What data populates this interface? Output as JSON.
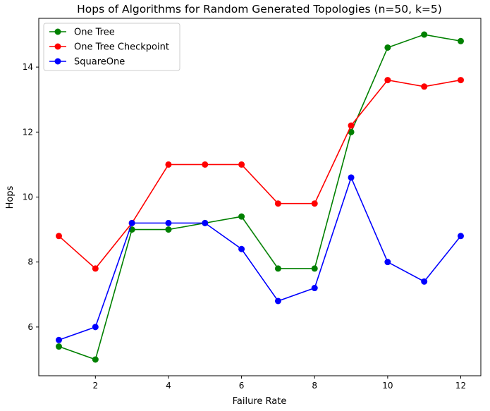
{
  "chart_data": {
    "type": "line",
    "title": "Hops of Algorithms for Random Generated Topologies (n=50, k=5)",
    "xlabel": "Failure Rate",
    "ylabel": "Hops",
    "x": [
      1,
      2,
      3,
      4,
      5,
      6,
      7,
      8,
      9,
      10,
      11,
      12
    ],
    "xlim": [
      0.45,
      12.55
    ],
    "ylim": [
      4.5,
      15.5
    ],
    "xticks": [
      2,
      4,
      6,
      8,
      10,
      12
    ],
    "yticks": [
      6,
      8,
      10,
      12,
      14
    ],
    "grid": false,
    "legend_position": "upper-left",
    "series": [
      {
        "name": "One Tree",
        "color": "#008000",
        "values": [
          5.4,
          5.0,
          9.0,
          9.0,
          9.2,
          9.4,
          7.8,
          7.8,
          12.0,
          14.6,
          15.0,
          14.8
        ]
      },
      {
        "name": "One Tree Checkpoint",
        "color": "#ff0000",
        "values": [
          8.8,
          7.8,
          9.2,
          11.0,
          11.0,
          11.0,
          9.8,
          9.8,
          12.2,
          13.6,
          13.4,
          13.6
        ]
      },
      {
        "name": "SquareOne",
        "color": "#0000ff",
        "values": [
          5.6,
          6.0,
          9.2,
          9.2,
          9.2,
          8.4,
          6.8,
          7.2,
          10.6,
          8.0,
          7.4,
          8.8
        ]
      }
    ]
  }
}
